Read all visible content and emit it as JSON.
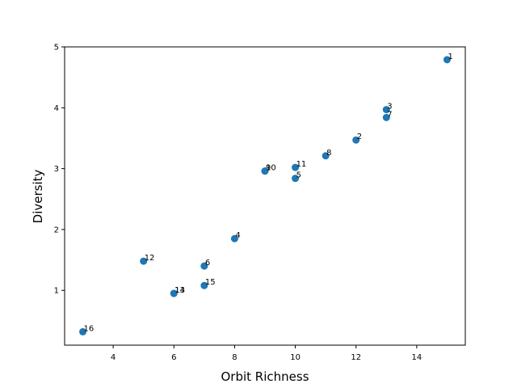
{
  "chart_data": {
    "type": "scatter",
    "title": "",
    "xlabel": "Orbit Richness",
    "ylabel": "Diversity",
    "xlim": [
      2.4,
      15.6
    ],
    "ylim": [
      0.1,
      5.0
    ],
    "xticks": [
      4,
      6,
      8,
      10,
      12,
      14
    ],
    "yticks": [
      1,
      2,
      3,
      4,
      5
    ],
    "grid": false,
    "color": "#1f77b4",
    "points": [
      {
        "label": "1",
        "x": 15,
        "y": 4.79
      },
      {
        "label": "2",
        "x": 12,
        "y": 3.47
      },
      {
        "label": "3",
        "x": 13,
        "y": 3.97
      },
      {
        "label": "4",
        "x": 8,
        "y": 1.85
      },
      {
        "label": "5",
        "x": 10,
        "y": 2.84
      },
      {
        "label": "6",
        "x": 7,
        "y": 1.4
      },
      {
        "label": "7",
        "x": 13,
        "y": 3.84
      },
      {
        "label": "8",
        "x": 11,
        "y": 3.21
      },
      {
        "label": "9",
        "x": 9,
        "y": 2.96
      },
      {
        "label": "10",
        "x": 9,
        "y": 2.96
      },
      {
        "label": "11",
        "x": 10,
        "y": 3.02
      },
      {
        "label": "12",
        "x": 5,
        "y": 1.48
      },
      {
        "label": "13",
        "x": 6,
        "y": 0.95
      },
      {
        "label": "14",
        "x": 6,
        "y": 0.95
      },
      {
        "label": "15",
        "x": 7,
        "y": 1.08
      },
      {
        "label": "16",
        "x": 3,
        "y": 0.32
      }
    ]
  }
}
